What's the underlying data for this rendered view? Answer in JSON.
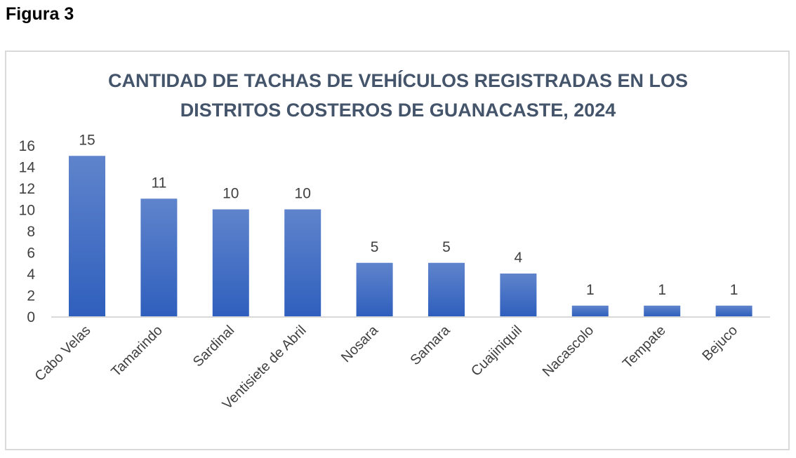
{
  "figure_label": "Figura 3",
  "chart_data": {
    "type": "bar",
    "title_lines": [
      "CANTIDAD DE TACHAS DE VEHÍCULOS REGISTRADAS EN LOS",
      "DISTRITOS COSTEROS DE GUANACASTE, 2024"
    ],
    "categories": [
      "Cabo Velas",
      "Tamarindo",
      "Sardinal",
      "Ventisiete de Abril",
      "Nosara",
      "Samara",
      "Cuajiniquil",
      "Nacascolo",
      "Tempate",
      "Bejuco"
    ],
    "values": [
      15,
      11,
      10,
      10,
      5,
      5,
      4,
      1,
      1,
      1
    ],
    "xlabel": "",
    "ylabel": "",
    "ylim": [
      0,
      16
    ],
    "yticks": [
      0,
      2,
      4,
      6,
      8,
      10,
      12,
      14,
      16
    ],
    "grid": false,
    "bar_color": "#4472c4"
  }
}
